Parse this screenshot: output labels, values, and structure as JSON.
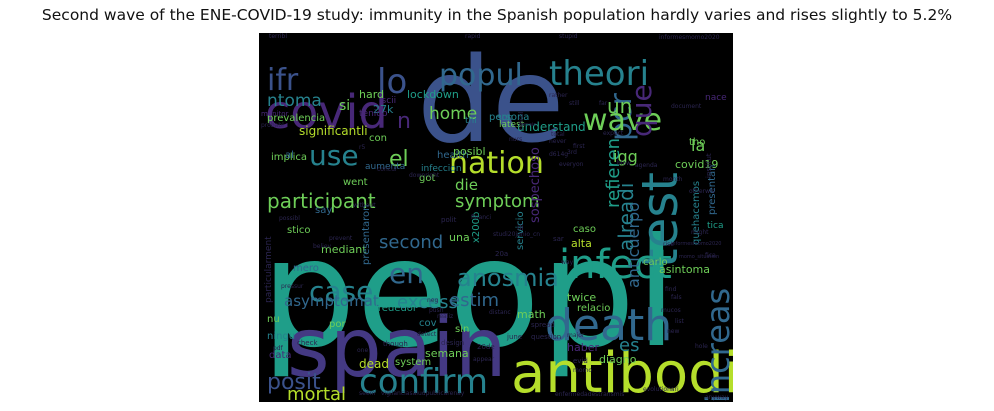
{
  "chart_data": {
    "type": "wordcloud",
    "title": "Second wave of the ENE-COVID-19 study: immunity in the Spanish population hardly varies and rises slightly to 5.2%",
    "colors": {
      "background": "#000000",
      "purple_dark": "#482878",
      "purple": "#443983",
      "blue": "#3b528b",
      "blue_teal": "#31688e",
      "teal": "#26828e",
      "teal_light": "#1f9e89",
      "green": "#35b779",
      "green_light": "#6ece58",
      "lime": "#b5de2b",
      "dim": "#2b2550"
    },
    "words": [
      {
        "text": "peopl",
        "color": "teal_light"
      },
      {
        "text": "de",
        "color": "blue"
      },
      {
        "text": "spain",
        "color": "purple"
      },
      {
        "text": "antibodi",
        "color": "lime"
      },
      {
        "text": "test",
        "color": "teal"
      },
      {
        "text": "death",
        "color": "blue_teal"
      },
      {
        "text": "covid",
        "color": "purple_dark"
      },
      {
        "text": "infect",
        "color": "teal_light"
      },
      {
        "text": "theori",
        "color": "teal"
      },
      {
        "text": "confirm",
        "color": "teal"
      },
      {
        "text": "increas",
        "color": "blue_teal"
      },
      {
        "text": "nation",
        "color": "lime"
      },
      {
        "text": "popul",
        "color": "blue_teal"
      },
      {
        "text": "lo",
        "color": "blue"
      },
      {
        "text": "pcr",
        "color": "blue_teal"
      },
      {
        "text": "wave",
        "color": "green_light"
      },
      {
        "text": "que",
        "color": "purple_dark"
      },
      {
        "text": "ifr",
        "color": "blue"
      },
      {
        "text": "use",
        "color": "teal"
      },
      {
        "text": "case",
        "color": "teal"
      },
      {
        "text": "en",
        "color": "blue_teal"
      },
      {
        "text": "anosmia",
        "color": "teal"
      },
      {
        "text": "posit",
        "color": "blue"
      },
      {
        "text": "el",
        "color": "green_light"
      },
      {
        "text": "participant",
        "color": "green_light"
      },
      {
        "text": "ntoma",
        "color": "teal"
      },
      {
        "text": "mortal",
        "color": "lime"
      },
      {
        "text": "second",
        "color": "blue_teal"
      },
      {
        "text": "excess",
        "color": "teal"
      },
      {
        "text": "estim",
        "color": "blue_teal"
      },
      {
        "text": "symptom",
        "color": "green_light"
      },
      {
        "text": "die",
        "color": "green_light"
      },
      {
        "text": "home",
        "color": "green_light"
      },
      {
        "text": "alreadi",
        "color": "teal"
      },
      {
        "text": "refieren",
        "color": "teal_light"
      },
      {
        "text": "anticuerpo",
        "color": "blue_teal"
      },
      {
        "text": "es",
        "color": "teal"
      },
      {
        "text": "asymptomat",
        "color": "blue_teal"
      },
      {
        "text": "un",
        "color": "green_light"
      },
      {
        "text": "igg",
        "color": "green_light"
      },
      {
        "text": "la",
        "color": "green_light"
      },
      {
        "text": "understand",
        "color": "teal_light"
      },
      {
        "text": "si",
        "color": "green_light"
      },
      {
        "text": "n",
        "color": "purple_dark"
      },
      {
        "text": "hard",
        "color": "green_light"
      },
      {
        "text": "lockdown",
        "color": "teal_light"
      },
      {
        "text": "27k",
        "color": "teal"
      },
      {
        "text": "significantli",
        "color": "lime"
      },
      {
        "text": "prevalencia",
        "color": "green_light"
      },
      {
        "text": "implica",
        "color": "green_light"
      },
      {
        "text": "con",
        "color": "green_light"
      },
      {
        "text": "health",
        "color": "blue_teal"
      },
      {
        "text": "aumenta",
        "color": "blue_teal"
      },
      {
        "text": "infeccion",
        "color": "teal"
      },
      {
        "text": "covid19",
        "color": "green_light"
      },
      {
        "text": "presentan",
        "color": "blue_teal"
      },
      {
        "text": "quehacemos",
        "color": "teal"
      },
      {
        "text": "tica",
        "color": "teal_light"
      },
      {
        "text": "asintoma",
        "color": "green_light"
      },
      {
        "text": "carlo",
        "color": "green_light"
      },
      {
        "text": "alta",
        "color": "lime"
      },
      {
        "text": "caso",
        "color": "green_light"
      },
      {
        "text": "sospechoso",
        "color": "purple_dark"
      },
      {
        "text": "servicio",
        "color": "teal"
      },
      {
        "text": "x200b",
        "color": "teal_light"
      },
      {
        "text": "una",
        "color": "green_light"
      },
      {
        "text": "mediant",
        "color": "green_light"
      },
      {
        "text": "mero",
        "color": "blue_teal"
      },
      {
        "text": "stico",
        "color": "green_light"
      },
      {
        "text": "say",
        "color": "blue_teal"
      },
      {
        "text": "presentaron",
        "color": "blue_teal"
      },
      {
        "text": "got",
        "color": "green_light"
      },
      {
        "text": "went",
        "color": "green_light"
      },
      {
        "text": "al",
        "color": "blue_teal"
      },
      {
        "text": "math",
        "color": "green_light"
      },
      {
        "text": "relacio",
        "color": "green_light"
      },
      {
        "text": "twice",
        "color": "green_light"
      },
      {
        "text": "diagno",
        "color": "green_light"
      },
      {
        "text": "haber",
        "color": "purple_dark"
      },
      {
        "text": "semana",
        "color": "green_light"
      },
      {
        "text": "dead",
        "color": "lime"
      },
      {
        "text": "system",
        "color": "green_light"
      },
      {
        "text": "por",
        "color": "green_light"
      },
      {
        "text": "sin",
        "color": "green_light"
      },
      {
        "text": "cov",
        "color": "teal"
      },
      {
        "text": "alrededor",
        "color": "teal_light"
      },
      {
        "text": "nu",
        "color": "green_light"
      },
      {
        "text": "ningu",
        "color": "teal"
      },
      {
        "text": "data",
        "color": "purple_dark"
      },
      {
        "text": "particularment",
        "color": "dim"
      },
      {
        "text": "tho",
        "color": "green_light"
      },
      {
        "text": "latest",
        "color": "green_light"
      },
      {
        "text": "thi",
        "color": "teal"
      },
      {
        "text": "posibl",
        "color": "green_light"
      },
      {
        "text": "persona",
        "color": "teal"
      },
      {
        "text": "son",
        "color": "teal"
      },
      {
        "text": "nace",
        "color": "purple_dark"
      },
      {
        "text": "iscii",
        "color": "purple_dark"
      },
      {
        "text": "tenido",
        "color": "purple_dark"
      },
      {
        "text": "monitor",
        "color": "purple_dark"
      },
      {
        "text": "probabl",
        "color": "dim"
      },
      {
        "text": "terribl",
        "color": "dim"
      },
      {
        "text": "rapid",
        "color": "dim"
      },
      {
        "text": "stupid",
        "color": "dim"
      },
      {
        "text": "rather",
        "color": "dim"
      },
      {
        "text": "informesmomo2020",
        "color": "dim"
      },
      {
        "text": "still",
        "color": "dim"
      },
      {
        "text": "far",
        "color": "dim"
      },
      {
        "text": "document",
        "color": "dim"
      },
      {
        "text": "first",
        "color": "dim"
      },
      {
        "text": "expect",
        "color": "dim"
      },
      {
        "text": "blow",
        "color": "dim"
      },
      {
        "text": "everyon",
        "color": "dim"
      },
      {
        "text": "d614g",
        "color": "dim"
      },
      {
        "text": "r5",
        "color": "dim"
      },
      {
        "text": "total",
        "color": "dim"
      },
      {
        "text": "never",
        "color": "dim"
      },
      {
        "text": "3rd",
        "color": "dim"
      },
      {
        "text": "nurs",
        "color": "dim"
      },
      {
        "text": "ridicul",
        "color": "dim"
      },
      {
        "text": "remain",
        "color": "dim"
      },
      {
        "text": "agenda",
        "color": "dim"
      },
      {
        "text": "month",
        "color": "dim"
      },
      {
        "text": "otherwis",
        "color": "dim"
      },
      {
        "text": "might",
        "color": "dim"
      },
      {
        "text": "rise",
        "color": "dim"
      },
      {
        "text": "momo_situation",
        "color": "dim"
      },
      {
        "text": "informesmomo2020",
        "color": "dim"
      },
      {
        "text": "concur",
        "color": "dim"
      },
      {
        "text": "downright",
        "color": "dim"
      },
      {
        "text": "without",
        "color": "dim"
      },
      {
        "text": "polit",
        "color": "dim"
      },
      {
        "text": "financi",
        "color": "dim"
      },
      {
        "text": "studi20junio_cn",
        "color": "dim"
      },
      {
        "text": "prevent",
        "color": "dim"
      },
      {
        "text": "believ",
        "color": "dim"
      },
      {
        "text": "possibl",
        "color": "dim"
      },
      {
        "text": "pressur",
        "color": "dim"
      },
      {
        "text": "pdf",
        "color": "dim"
      },
      {
        "text": "check",
        "color": "dim"
      },
      {
        "text": "one",
        "color": "dim"
      },
      {
        "text": "though",
        "color": "dim"
      },
      {
        "text": "design",
        "color": "dim"
      },
      {
        "text": "20de",
        "color": "dim"
      },
      {
        "text": "june",
        "color": "dim"
      },
      {
        "text": "question",
        "color": "dim"
      },
      {
        "text": "spread",
        "color": "dim"
      },
      {
        "text": "major",
        "color": "dim"
      },
      {
        "text": "evid",
        "color": "dim"
      },
      {
        "text": "momo",
        "color": "dim"
      },
      {
        "text": "seem",
        "color": "dim"
      },
      {
        "text": "vigilanciasaludpublicarenay",
        "color": "dim"
      },
      {
        "text": "enfermedadestransmis",
        "color": "dim"
      },
      {
        "text": "evolutionari",
        "color": "dim"
      },
      {
        "text": "anyway",
        "color": "dim"
      },
      {
        "text": "new",
        "color": "dim"
      },
      {
        "text": "list",
        "color": "dim"
      },
      {
        "text": "fals",
        "color": "dim"
      },
      {
        "text": "find",
        "color": "dim"
      },
      {
        "text": "mucos",
        "color": "dim"
      },
      {
        "text": "hole",
        "color": "dim"
      },
      {
        "text": "way",
        "color": "dim"
      },
      {
        "text": "sar",
        "color": "dim"
      },
      {
        "text": "iii",
        "color": "dim"
      },
      {
        "text": "20a",
        "color": "dim"
      },
      {
        "text": "realiz",
        "color": "dim"
      },
      {
        "text": "distanc",
        "color": "dim"
      },
      {
        "text": "push",
        "color": "dim"
      },
      {
        "text": "appear",
        "color": "dim"
      },
      {
        "text": "detect",
        "color": "dim"
      },
      {
        "text": "neg",
        "color": "dim"
      },
      {
        "text": "institut",
        "color": "dim"
      },
      {
        "text": "fica",
        "color": "dim"
      }
    ]
  }
}
